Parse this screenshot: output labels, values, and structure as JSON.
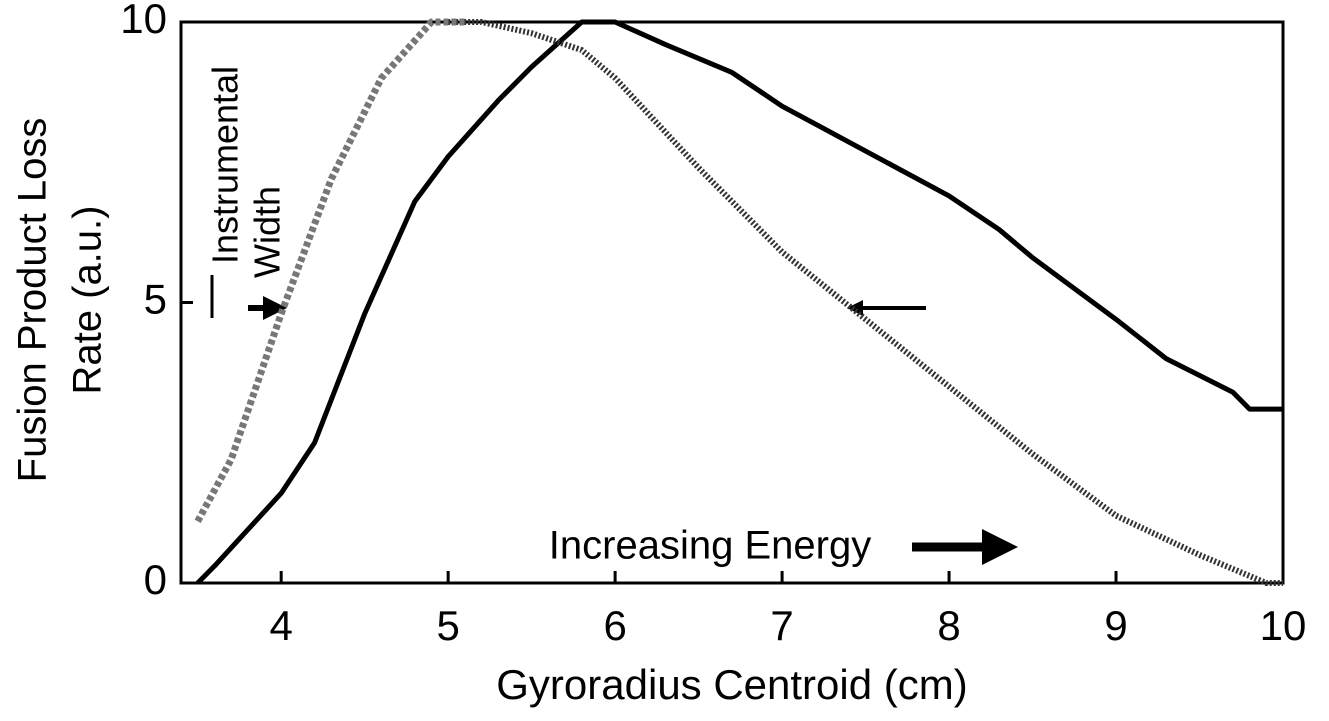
{
  "chart_data": {
    "type": "line",
    "xlabel": "Gyroradius Centroid (cm)",
    "ylabel": [
      "Fusion Product Loss",
      "Rate (a.u.)"
    ],
    "annotations": [
      "Instrumental",
      "Width",
      "Increasing Energy"
    ],
    "xlim": [
      3.4,
      10
    ],
    "xticks": [
      4,
      5,
      6,
      7,
      8,
      9,
      10
    ],
    "ylim": [
      0,
      10
    ],
    "yticks": [
      0,
      5,
      10
    ],
    "series": [
      {
        "color": "#000000",
        "style": "solid",
        "x": [
          3.5,
          3.6,
          4,
          4.2,
          4.5,
          4.8,
          5,
          5.3,
          5.5,
          5.8,
          6,
          6.3,
          6.7,
          7,
          7.5,
          8,
          8.3,
          8.5,
          9,
          9.3,
          9.7,
          9.8,
          10
        ],
        "values": [
          0,
          0.3,
          1.6,
          2.5,
          4.8,
          6.8,
          7.6,
          8.6,
          9.2,
          10,
          10,
          9.6,
          9.1,
          8.5,
          7.7,
          6.9,
          6.3,
          5.8,
          4.7,
          4,
          3.4,
          3.1,
          3.1
        ]
      },
      {
        "color": "#333333",
        "style": "dotted",
        "x": [
          5,
          5.2,
          5.5,
          5.8,
          6,
          6.5,
          7,
          7.5,
          8,
          8.5,
          9,
          9.5,
          9.9,
          10
        ],
        "values": [
          10,
          10,
          9.8,
          9.5,
          9,
          7.4,
          5.9,
          4.7,
          3.5,
          2.3,
          1.2,
          0.5,
          0,
          0
        ]
      },
      {
        "color": "#777777",
        "style": "hatched",
        "x": [
          3.5,
          3.7,
          4,
          4.3,
          4.6,
          4.9,
          5.1
        ],
        "values": [
          1.1,
          2.2,
          4.8,
          7.2,
          9,
          10,
          10
        ]
      }
    ]
  }
}
